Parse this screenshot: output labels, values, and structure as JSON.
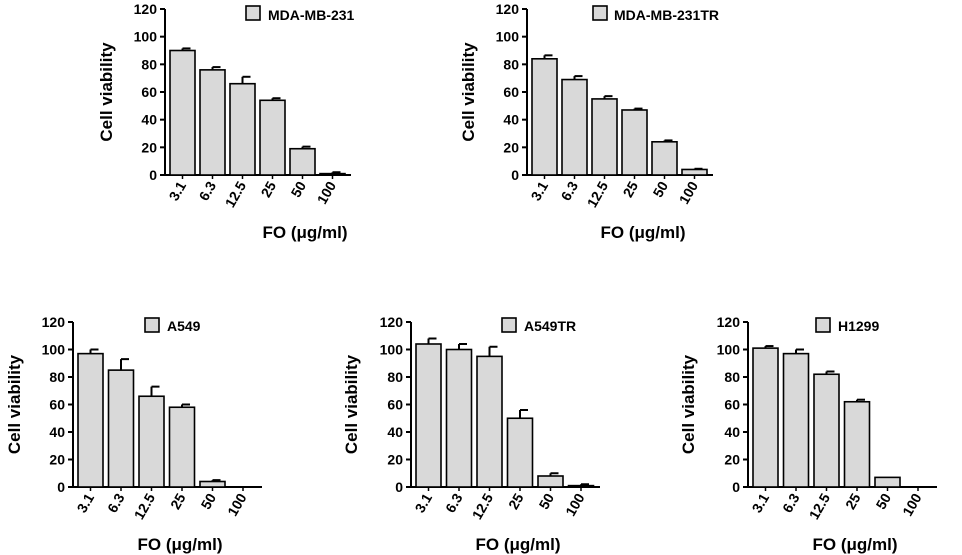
{
  "figure": {
    "fill_color": "#d9d9d9",
    "stroke_color": "#000000"
  },
  "chart_data": [
    {
      "type": "bar",
      "title": "MDA-MB-231",
      "xlabel": "FO (μg/ml)",
      "ylabel": "Cell viability",
      "categories": [
        "3.1",
        "6.3",
        "12.5",
        "25",
        "50",
        "100"
      ],
      "values": [
        90,
        76,
        66,
        54,
        19,
        1
      ],
      "errors": [
        1.5,
        2,
        5,
        1.5,
        1.5,
        1
      ],
      "ylim": [
        0,
        120
      ],
      "yticks": [
        0,
        20,
        40,
        60,
        80,
        100,
        120
      ],
      "legend": "MDA-MB-231"
    },
    {
      "type": "bar",
      "title": "MDA-MB-231TR",
      "xlabel": "FO (μg/ml)",
      "ylabel": "Cell viability",
      "categories": [
        "3.1",
        "6.3",
        "12.5",
        "25",
        "50",
        "100"
      ],
      "values": [
        84,
        69,
        55,
        47,
        24,
        4
      ],
      "errors": [
        2.5,
        2.5,
        2,
        1,
        1,
        0.5
      ],
      "ylim": [
        0,
        120
      ],
      "yticks": [
        0,
        20,
        40,
        60,
        80,
        100,
        120
      ],
      "legend": "MDA-MB-231TR"
    },
    {
      "type": "bar",
      "title": "A549",
      "xlabel": "FO (μg/ml)",
      "ylabel": "Cell viability",
      "categories": [
        "3.1",
        "6.3",
        "12.5",
        "25",
        "50",
        "100"
      ],
      "values": [
        97,
        85,
        66,
        58,
        4,
        0
      ],
      "errors": [
        3,
        8,
        7,
        2,
        1,
        0
      ],
      "ylim": [
        0,
        120
      ],
      "yticks": [
        0,
        20,
        40,
        60,
        80,
        100,
        120
      ],
      "legend": "A549"
    },
    {
      "type": "bar",
      "title": "A549TR",
      "xlabel": "FO (μg/ml)",
      "ylabel": "Cell viability",
      "categories": [
        "3.1",
        "6.3",
        "12.5",
        "25",
        "50",
        "100"
      ],
      "values": [
        104,
        100,
        95,
        50,
        8,
        1
      ],
      "errors": [
        4,
        4,
        7,
        6,
        2,
        1
      ],
      "ylim": [
        0,
        120
      ],
      "yticks": [
        0,
        20,
        40,
        60,
        80,
        100,
        120
      ],
      "legend": "A549TR"
    },
    {
      "type": "bar",
      "title": "H1299",
      "xlabel": "FO (μg/ml)",
      "ylabel": "Cell viability",
      "categories": [
        "3.1",
        "6.3",
        "12.5",
        "25",
        "50",
        "100"
      ],
      "values": [
        101,
        97,
        82,
        62,
        7,
        0
      ],
      "errors": [
        1.5,
        3,
        2,
        1.5,
        0,
        0
      ],
      "ylim": [
        0,
        120
      ],
      "yticks": [
        0,
        20,
        40,
        60,
        80,
        100,
        120
      ],
      "legend": "H1299"
    }
  ]
}
